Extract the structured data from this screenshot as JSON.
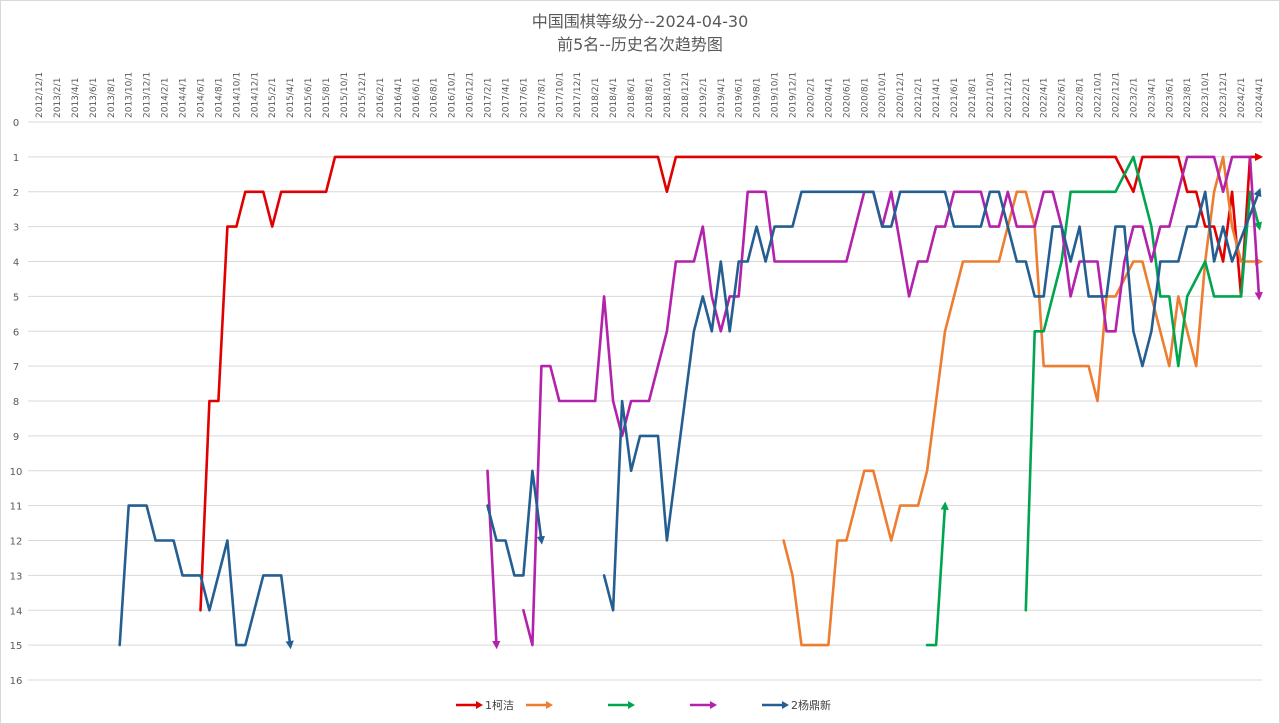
{
  "chart_data": {
    "type": "line",
    "title": "中国围棋等级分--2024-04-30",
    "subtitle": "前5名--历史名次趋势图",
    "y_reversed": true,
    "ylim": [
      0,
      16
    ],
    "yticks": [
      0,
      1,
      2,
      3,
      4,
      5,
      6,
      7,
      8,
      9,
      10,
      11,
      12,
      13,
      14,
      15,
      16
    ],
    "x_ticks": [
      "2012/12/1",
      "2013/2/1",
      "2013/4/1",
      "2013/6/1",
      "2013/8/1",
      "2013/10/1",
      "2013/12/1",
      "2014/2/1",
      "2014/4/1",
      "2014/6/1",
      "2014/8/1",
      "2014/10/1",
      "2014/12/1",
      "2015/2/1",
      "2015/4/1",
      "2015/6/1",
      "2015/8/1",
      "2015/10/1",
      "2015/12/1",
      "2016/2/1",
      "2016/4/1",
      "2016/6/1",
      "2016/8/1",
      "2016/10/1",
      "2016/12/1",
      "2017/2/1",
      "2017/4/1",
      "2017/6/1",
      "2017/8/1",
      "2017/10/1",
      "2017/12/1",
      "2018/2/1",
      "2018/4/1",
      "2018/6/1",
      "2018/8/1",
      "2018/10/1",
      "2018/12/1",
      "2019/2/1",
      "2019/4/1",
      "2019/6/1",
      "2019/8/1",
      "2019/10/1",
      "2019/12/1",
      "2020/2/1",
      "2020/4/1",
      "2020/6/1",
      "2020/8/1",
      "2020/10/1",
      "2020/12/1",
      "2021/2/1",
      "2021/4/1",
      "2021/6/1",
      "2021/8/1",
      "2021/10/1",
      "2021/12/1",
      "2022/2/1",
      "2022/4/1",
      "2022/6/1",
      "2022/8/1",
      "2022/10/1",
      "2022/12/1",
      "2023/2/1",
      "2023/4/1",
      "2023/6/1",
      "2023/8/1",
      "2023/10/1",
      "2023/12/1",
      "2024/2/1",
      "2024/4/1"
    ],
    "grid": true,
    "legend_position": "bottom",
    "series": [
      {
        "name": "1柯洁",
        "color": "#e00000",
        "segments": [
          [
            [
              "2014/6/1",
              14
            ],
            [
              "2014/7/1",
              8
            ],
            [
              "2014/8/1",
              8
            ],
            [
              "2014/9/1",
              3
            ],
            [
              "2014/10/1",
              3
            ],
            [
              "2014/11/1",
              2
            ],
            [
              "2015/1/1",
              2
            ],
            [
              "2015/2/1",
              3
            ],
            [
              "2015/3/1",
              2
            ],
            [
              "2015/8/1",
              2
            ],
            [
              "2015/9/1",
              1
            ],
            [
              "2018/9/1",
              1
            ],
            [
              "2018/10/1",
              2
            ],
            [
              "2018/11/1",
              1
            ],
            [
              "2022/12/1",
              1
            ],
            [
              "2023/2/1",
              2
            ],
            [
              "2023/3/1",
              1
            ],
            [
              "2023/7/1",
              1
            ],
            [
              "2023/8/1",
              2
            ],
            [
              "2023/9/1",
              2
            ],
            [
              "2023/10/1",
              3
            ],
            [
              "2023/11/1",
              3
            ],
            [
              "2023/12/1",
              4
            ],
            [
              "2024/1/1",
              2
            ],
            [
              "2024/2/1",
              5
            ],
            [
              "2024/3/1",
              1
            ],
            [
              "2024/4/1",
              1
            ]
          ]
        ]
      },
      {
        "name": "",
        "color": "#ed7d31",
        "segments": [
          [
            [
              "2019/11/1",
              12
            ],
            [
              "2019/12/1",
              13
            ],
            [
              "2020/1/1",
              15
            ],
            [
              "2020/4/1",
              15
            ],
            [
              "2020/5/1",
              12
            ],
            [
              "2020/6/1",
              12
            ],
            [
              "2020/8/1",
              10
            ],
            [
              "2020/9/1",
              10
            ],
            [
              "2020/11/1",
              12
            ],
            [
              "2020/12/1",
              11
            ],
            [
              "2021/2/1",
              11
            ],
            [
              "2021/3/1",
              10
            ],
            [
              "2021/4/1",
              8
            ],
            [
              "2021/5/1",
              6
            ],
            [
              "2021/7/1",
              4
            ],
            [
              "2021/11/1",
              4
            ],
            [
              "2021/12/1",
              3
            ],
            [
              "2022/1/1",
              2
            ],
            [
              "2022/2/1",
              2
            ],
            [
              "2022/3/1",
              3
            ],
            [
              "2022/4/1",
              7
            ],
            [
              "2022/9/1",
              7
            ],
            [
              "2022/10/1",
              8
            ],
            [
              "2022/11/1",
              5
            ],
            [
              "2022/12/1",
              5
            ],
            [
              "2023/2/1",
              4
            ],
            [
              "2023/3/1",
              4
            ],
            [
              "2023/5/1",
              6
            ],
            [
              "2023/6/1",
              7
            ],
            [
              "2023/7/1",
              5
            ],
            [
              "2023/9/1",
              7
            ],
            [
              "2023/10/1",
              4
            ],
            [
              "2023/11/1",
              2
            ],
            [
              "2023/12/1",
              1
            ],
            [
              "2024/1/1",
              3
            ],
            [
              "2024/2/1",
              4
            ],
            [
              "2024/4/1",
              4
            ]
          ]
        ]
      },
      {
        "name": "",
        "color": "#00a550",
        "segments": [
          [
            [
              "2021/3/1",
              15
            ],
            [
              "2021/4/1",
              15
            ],
            [
              "2021/5/1",
              11
            ]
          ],
          [
            [
              "2022/2/1",
              14
            ],
            [
              "2022/3/1",
              6
            ],
            [
              "2022/4/1",
              6
            ],
            [
              "2022/6/1",
              4
            ],
            [
              "2022/7/1",
              2
            ],
            [
              "2022/12/1",
              2
            ],
            [
              "2023/2/1",
              1
            ],
            [
              "2023/4/1",
              3
            ],
            [
              "2023/5/1",
              5
            ],
            [
              "2023/6/1",
              5
            ],
            [
              "2023/7/1",
              7
            ],
            [
              "2023/8/1",
              5
            ],
            [
              "2023/10/1",
              4
            ],
            [
              "2023/11/1",
              5
            ],
            [
              "2024/2/1",
              5
            ],
            [
              "2024/3/1",
              2
            ],
            [
              "2024/4/1",
              3
            ]
          ]
        ]
      },
      {
        "name": "",
        "color": "#b222aa",
        "segments": [
          [
            [
              "2017/2/1",
              10
            ],
            [
              "2017/3/1",
              15
            ]
          ],
          [
            [
              "2017/6/1",
              14
            ],
            [
              "2017/7/1",
              15
            ],
            [
              "2017/8/1",
              7
            ],
            [
              "2017/9/1",
              7
            ],
            [
              "2017/10/1",
              8
            ],
            [
              "2017/11/1",
              8
            ],
            [
              "2018/2/1",
              8
            ],
            [
              "2018/3/1",
              5
            ],
            [
              "2018/4/1",
              8
            ],
            [
              "2018/5/1",
              9
            ],
            [
              "2018/6/1",
              8
            ],
            [
              "2018/8/1",
              8
            ],
            [
              "2018/10/1",
              6
            ],
            [
              "2018/11/1",
              4
            ],
            [
              "2019/1/1",
              4
            ],
            [
              "2019/2/1",
              3
            ],
            [
              "2019/3/1",
              5
            ],
            [
              "2019/4/1",
              6
            ],
            [
              "2019/5/1",
              5
            ],
            [
              "2019/6/1",
              5
            ],
            [
              "2019/7/1",
              2
            ],
            [
              "2019/9/1",
              2
            ],
            [
              "2019/10/1",
              4
            ],
            [
              "2020/5/1",
              4
            ],
            [
              "2020/6/1",
              4
            ],
            [
              "2020/8/1",
              2
            ],
            [
              "2020/9/1",
              2
            ],
            [
              "2020/10/1",
              3
            ],
            [
              "2020/11/1",
              2
            ],
            [
              "2021/1/1",
              5
            ],
            [
              "2021/2/1",
              4
            ],
            [
              "2021/3/1",
              4
            ],
            [
              "2021/4/1",
              3
            ],
            [
              "2021/5/1",
              3
            ],
            [
              "2021/6/1",
              2
            ],
            [
              "2021/9/1",
              2
            ],
            [
              "2021/10/1",
              3
            ],
            [
              "2021/11/1",
              3
            ],
            [
              "2021/12/1",
              2
            ],
            [
              "2022/1/1",
              3
            ],
            [
              "2022/3/1",
              3
            ],
            [
              "2022/4/1",
              2
            ],
            [
              "2022/5/1",
              2
            ],
            [
              "2022/6/1",
              3
            ],
            [
              "2022/7/1",
              5
            ],
            [
              "2022/8/1",
              4
            ],
            [
              "2022/10/1",
              4
            ],
            [
              "2022/11/1",
              6
            ],
            [
              "2022/12/1",
              6
            ],
            [
              "2023/1/1",
              4
            ],
            [
              "2023/2/1",
              3
            ],
            [
              "2023/3/1",
              3
            ],
            [
              "2023/4/1",
              4
            ],
            [
              "2023/5/1",
              3
            ],
            [
              "2023/6/1",
              3
            ],
            [
              "2023/8/1",
              1
            ],
            [
              "2023/11/1",
              1
            ],
            [
              "2023/12/1",
              2
            ],
            [
              "2024/1/1",
              1
            ],
            [
              "2024/3/1",
              1
            ],
            [
              "2024/4/1",
              5
            ]
          ]
        ]
      },
      {
        "name": "2杨鼎新",
        "color": "#255e91",
        "segments": [
          [
            [
              "2013/9/1",
              15
            ],
            [
              "2013/10/1",
              11
            ],
            [
              "2013/12/1",
              11
            ],
            [
              "2014/1/1",
              12
            ],
            [
              "2014/3/1",
              12
            ],
            [
              "2014/4/1",
              13
            ],
            [
              "2014/6/1",
              13
            ],
            [
              "2014/7/1",
              14
            ],
            [
              "2014/9/1",
              12
            ],
            [
              "2014/10/1",
              15
            ],
            [
              "2014/11/1",
              15
            ],
            [
              "2015/1/1",
              13
            ],
            [
              "2015/3/1",
              13
            ],
            [
              "2015/4/1",
              15
            ]
          ],
          [
            [
              "2017/2/1",
              11
            ],
            [
              "2017/3/1",
              12
            ],
            [
              "2017/4/1",
              12
            ],
            [
              "2017/5/1",
              13
            ],
            [
              "2017/6/1",
              13
            ],
            [
              "2017/7/1",
              10
            ],
            [
              "2017/8/1",
              12
            ]
          ],
          [
            [
              "2018/3/1",
              13
            ],
            [
              "2018/4/1",
              14
            ],
            [
              "2018/5/1",
              8
            ],
            [
              "2018/6/1",
              10
            ],
            [
              "2018/7/1",
              9
            ],
            [
              "2018/9/1",
              9
            ],
            [
              "2018/10/1",
              12
            ],
            [
              "2018/11/1",
              10
            ],
            [
              "2018/12/1",
              8
            ],
            [
              "2019/1/1",
              6
            ],
            [
              "2019/2/1",
              5
            ],
            [
              "2019/3/1",
              6
            ],
            [
              "2019/4/1",
              4
            ],
            [
              "2019/5/1",
              6
            ],
            [
              "2019/6/1",
              4
            ],
            [
              "2019/7/1",
              4
            ],
            [
              "2019/8/1",
              3
            ],
            [
              "2019/9/1",
              4
            ],
            [
              "2019/10/1",
              3
            ],
            [
              "2019/12/1",
              3
            ],
            [
              "2020/1/1",
              2
            ],
            [
              "2020/9/1",
              2
            ],
            [
              "2020/10/1",
              3
            ],
            [
              "2020/11/1",
              3
            ],
            [
              "2020/12/1",
              2
            ],
            [
              "2021/5/1",
              2
            ],
            [
              "2021/6/1",
              3
            ],
            [
              "2021/9/1",
              3
            ],
            [
              "2021/10/1",
              2
            ],
            [
              "2021/11/1",
              2
            ],
            [
              "2022/1/1",
              4
            ],
            [
              "2022/2/1",
              4
            ],
            [
              "2022/3/1",
              5
            ],
            [
              "2022/4/1",
              5
            ],
            [
              "2022/5/1",
              3
            ],
            [
              "2022/6/1",
              3
            ],
            [
              "2022/7/1",
              4
            ],
            [
              "2022/8/1",
              3
            ],
            [
              "2022/9/1",
              5
            ],
            [
              "2022/11/1",
              5
            ],
            [
              "2022/12/1",
              3
            ],
            [
              "2023/1/1",
              3
            ],
            [
              "2023/2/1",
              6
            ],
            [
              "2023/3/1",
              7
            ],
            [
              "2023/4/1",
              6
            ],
            [
              "2023/5/1",
              4
            ],
            [
              "2023/7/1",
              4
            ],
            [
              "2023/8/1",
              3
            ],
            [
              "2023/9/1",
              3
            ],
            [
              "2023/10/1",
              2
            ],
            [
              "2023/11/1",
              4
            ],
            [
              "2023/12/1",
              3
            ],
            [
              "2024/1/1",
              4
            ],
            [
              "2024/4/1",
              2
            ]
          ]
        ]
      }
    ]
  }
}
